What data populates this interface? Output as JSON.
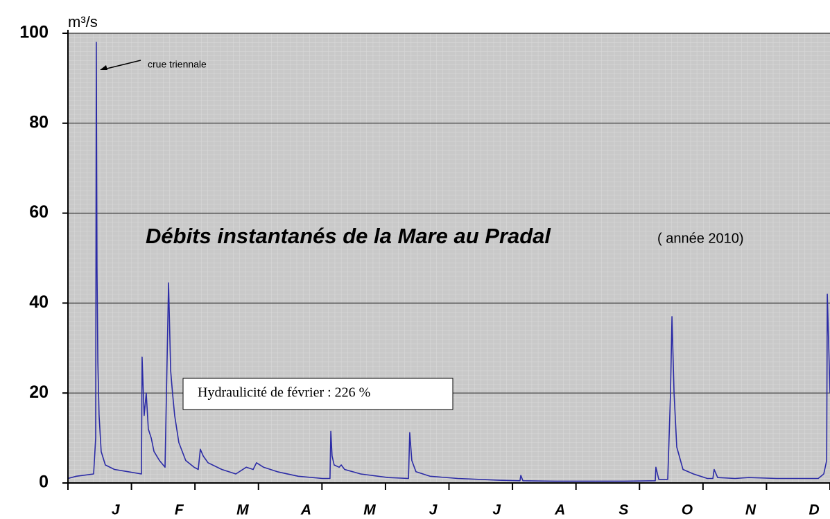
{
  "chart_data": {
    "type": "line",
    "title": "Débits instantanés de la Mare au Pradal",
    "subtitle": "( année 2010)",
    "y_label": "m³/s",
    "annotations": [
      "crue triennale",
      "Hydraulicité de février : 226 %"
    ],
    "categories": [
      "J",
      "F",
      "M",
      "A",
      "M",
      "J",
      "J",
      "A",
      "S",
      "O",
      "N",
      "D"
    ],
    "xlim": [
      0,
      365
    ],
    "ylim": [
      0,
      100
    ],
    "yticks": [
      0,
      20,
      40,
      60,
      80,
      100
    ],
    "grid": true,
    "x": [
      0,
      4.0,
      12.3,
      13.3,
      13.6,
      13.9,
      14.3,
      14.9,
      15.9,
      17.9,
      22.3,
      28.9,
      35.2,
      35.5,
      36.5,
      37.5,
      38.5,
      39.9,
      41.2,
      43.8,
      46.5,
      48.2,
      49.2,
      50.1,
      51.1,
      53.1,
      56.4,
      60.4,
      62.4,
      63.4,
      64.8,
      67.1,
      73.7,
      80.4,
      85.4,
      88.7,
      90.3,
      93.7,
      100.3,
      110.3,
      121.9,
      125.5,
      125.9,
      126.5,
      127.5,
      129.9,
      130.9,
      132.5,
      140.2,
      153.4,
      163.1,
      163.7,
      164.7,
      166.7,
      173.4,
      186.7,
      206.6,
      216.5,
      216.9,
      217.9,
      233.1,
      266.4,
      281.3,
      281.6,
      283,
      287.3,
      288.6,
      289.3,
      290.3,
      291.6,
      294.6,
      299.6,
      306.2,
      308.9,
      309.5,
      311.2,
      319.5,
      326.1,
      339.4,
      359.4,
      362,
      363.4,
      363.7,
      365
    ],
    "series": [
      {
        "name": "Débits",
        "color": "#2b2ba6",
        "values": [
          1,
          1.5,
          2,
          10,
          98,
          48,
          27,
          15,
          7,
          4,
          3,
          2.5,
          2,
          28,
          15,
          20,
          12,
          10,
          7,
          5,
          3.5,
          44.5,
          25,
          20,
          15,
          9,
          5,
          3.5,
          3,
          7.5,
          6,
          4.5,
          3,
          2,
          3.5,
          3,
          4.5,
          3.5,
          2.5,
          1.5,
          1,
          1,
          11.5,
          6,
          4,
          3.5,
          4,
          3,
          2,
          1.2,
          1,
          11.2,
          5,
          2.5,
          1.5,
          1,
          0.6,
          0.5,
          1.7,
          0.5,
          0.4,
          0.4,
          0.5,
          3.5,
          0.8,
          0.8,
          20,
          37,
          20,
          8,
          3,
          2,
          1,
          1,
          3,
          1.2,
          1,
          1.2,
          1,
          1,
          2,
          5,
          42,
          20
        ]
      }
    ]
  }
}
